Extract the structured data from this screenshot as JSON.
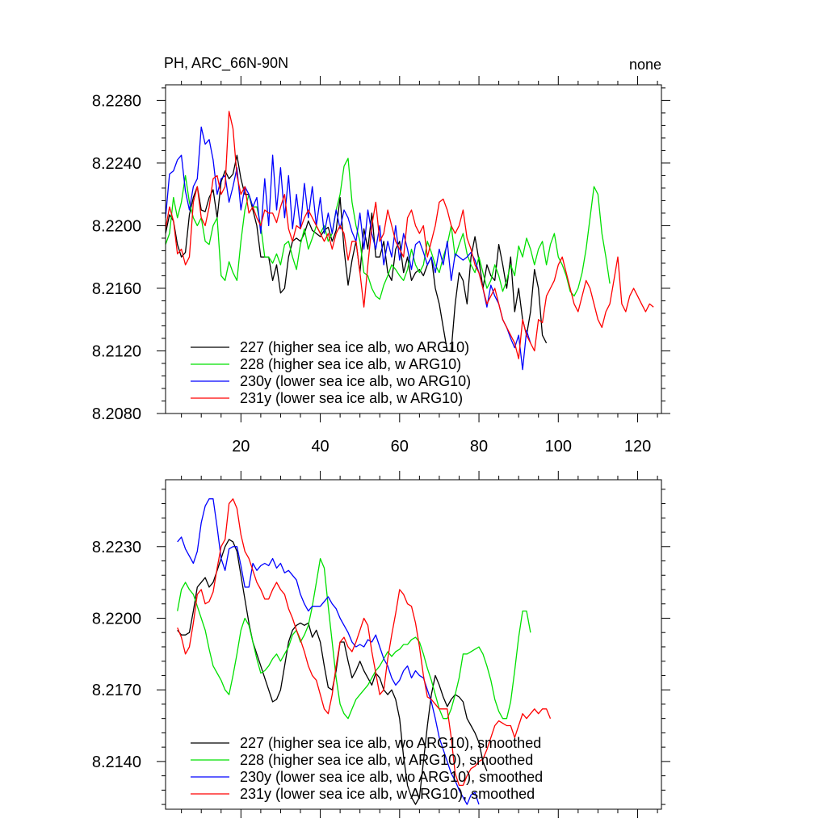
{
  "header": {
    "title_left": "PH, ARC_66N-90N",
    "title_right": "none"
  },
  "chart_data": [
    {
      "type": "line",
      "panel": "top",
      "title": "PH, ARC_66N-90N",
      "right_title": "none",
      "xlabel": "",
      "ylabel": "",
      "xlim": [
        1,
        126
      ],
      "ylim": [
        8.208,
        8.229
      ],
      "x_ticks": [
        20,
        40,
        60,
        80,
        100,
        120
      ],
      "y_ticks": [
        8.208,
        8.212,
        8.216,
        8.22,
        8.224,
        8.228
      ],
      "y_tick_labels": [
        "8.2080",
        "8.2120",
        "8.2160",
        "8.2200",
        "8.2240",
        "8.2280"
      ],
      "grid": false,
      "legend_position": "bottom-left",
      "series": [
        {
          "name": "227 (higher sea ice alb, wo ARG10)",
          "color": "#000000",
          "x_start": 1,
          "values": [
            8.2195,
            8.2207,
            8.2203,
            8.2188,
            8.218,
            8.2183,
            8.2207,
            8.2218,
            8.2225,
            8.221,
            8.2209,
            8.2218,
            8.2223,
            8.2205,
            8.2228,
            8.2235,
            8.223,
            8.2233,
            8.2245,
            8.223,
            8.222,
            8.222,
            8.221,
            8.22,
            8.218,
            8.218,
            8.218,
            8.2165,
            8.2175,
            8.2157,
            8.216,
            8.218,
            8.219,
            8.2192,
            8.219,
            8.2195,
            8.2203,
            8.2197,
            8.2195,
            8.2193,
            8.2197,
            8.2199,
            8.219,
            8.2197,
            8.2218,
            8.2185,
            8.2162,
            8.2178,
            8.219,
            8.217,
            8.2198,
            8.2185,
            8.2208,
            8.218,
            8.218,
            8.219,
            8.217,
            8.2165,
            8.2185,
            8.219,
            8.217,
            8.218,
            8.2165,
            8.217,
            8.2172,
            8.2168,
            8.2175,
            8.218,
            8.216,
            8.215,
            8.2135,
            8.212,
            8.212,
            8.215,
            8.217,
            8.2165,
            8.215,
            8.218,
            8.2193,
            8.2178,
            8.216,
            8.2175,
            8.2168,
            8.2165,
            8.2188,
            8.2175,
            8.216,
            8.218,
            8.2145,
            8.216,
            8.214,
            8.213,
            8.2145,
            8.2172,
            8.216,
            8.213,
            8.2125
          ]
        },
        {
          "name": "228 (higher sea ice alb, w ARG10)",
          "color": "#00e000",
          "x_start": 1,
          "values": [
            8.2188,
            8.2195,
            8.2218,
            8.2205,
            8.2215,
            8.2232,
            8.2215,
            8.2205,
            8.22,
            8.2205,
            8.219,
            8.2188,
            8.22,
            8.2205,
            8.2168,
            8.2165,
            8.2177,
            8.217,
            8.2165,
            8.219,
            8.221,
            8.222,
            8.2212,
            8.2212,
            8.22,
            8.218,
            8.218,
            8.2176,
            8.2182,
            8.2175,
            8.2188,
            8.219,
            8.218,
            8.2172,
            8.2188,
            8.2198,
            8.2185,
            8.2192,
            8.22,
            8.2195,
            8.22,
            8.219,
            8.2195,
            8.221,
            8.222,
            8.2238,
            8.2243,
            8.2215,
            8.22,
            8.219,
            8.217,
            8.2168,
            8.216,
            8.2155,
            8.2153,
            8.2162,
            8.2168,
            8.2175,
            8.2172,
            8.2168,
            8.2165,
            8.2172,
            8.2185,
            8.2175,
            8.217,
            8.2175,
            8.219,
            8.2183,
            8.2175,
            8.217,
            8.218,
            8.2188,
            8.22,
            8.218,
            8.2188,
            8.2195,
            8.2182,
            8.2175,
            8.217,
            8.218,
            8.217,
            8.216,
            8.2165,
            8.2175,
            8.2168,
            8.2158,
            8.2165,
            8.2175,
            8.2168,
            8.2187,
            8.218,
            8.2192,
            8.2185,
            8.2175,
            8.2185,
            8.219,
            8.2175,
            8.2188,
            8.2195,
            8.218,
            8.2175,
            8.2168,
            8.2158,
            8.2155,
            8.216,
            8.217,
            8.2185,
            8.2205,
            8.2225,
            8.222,
            8.2195,
            8.218,
            8.2163
          ]
        },
        {
          "name": "230y (lower sea ice alb, wo ARG10)",
          "color": "#0000ff",
          "x_start": 1,
          "values": [
            8.2205,
            8.2233,
            8.2235,
            8.2242,
            8.2245,
            8.2222,
            8.221,
            8.2225,
            8.223,
            8.2263,
            8.2252,
            8.2255,
            8.2242,
            8.222,
            8.223,
            8.2232,
            8.2215,
            8.2225,
            8.2237,
            8.221,
            8.2225,
            8.222,
            8.2212,
            8.2218,
            8.2195,
            8.223,
            8.22,
            8.2245,
            8.221,
            8.2237,
            8.2205,
            8.2232,
            8.2198,
            8.222,
            8.2198,
            8.2227,
            8.2205,
            8.2225,
            8.22,
            8.2218,
            8.2195,
            8.2208,
            8.2195,
            8.221,
            8.2198,
            8.221,
            8.2205,
            8.2196,
            8.219,
            8.2208,
            8.2185,
            8.221,
            8.2195,
            8.2185,
            8.22,
            8.2175,
            8.219,
            8.218,
            8.22,
            8.2178,
            8.2195,
            8.2185,
            8.2172,
            8.2188,
            8.219,
            8.2183,
            8.2175,
            8.218,
            8.217,
            8.2185,
            8.2175,
            8.219,
            8.2165,
            8.2182,
            8.218,
            8.2178,
            8.218,
            8.2183,
            8.2178,
            8.217,
            8.216,
            8.2148,
            8.2162,
            8.2155,
            8.215,
            8.214,
            8.2135,
            8.2128,
            8.2122,
            8.213,
            8.2108,
            8.2133,
            8.2125
          ]
        },
        {
          "name": "231y (lower sea ice alb, w ARG10)",
          "color": "#ff0000",
          "x_start": 1,
          "values": [
            8.2198,
            8.2212,
            8.2203,
            8.2182,
            8.2185,
            8.2175,
            8.218,
            8.2215,
            8.2225,
            8.2205,
            8.22,
            8.2212,
            8.223,
            8.2232,
            8.222,
            8.2225,
            8.2273,
            8.2262,
            8.2232,
            8.222,
            8.2225,
            8.2208,
            8.2212,
            8.2205,
            8.22,
            8.221,
            8.2208,
            8.2208,
            8.2202,
            8.2212,
            8.222,
            8.2198,
            8.219,
            8.22,
            8.2198,
            8.2205,
            8.221,
            8.2205,
            8.22,
            8.2195,
            8.219,
            8.2195,
            8.2185,
            8.2195,
            8.22,
            8.2195,
            8.2178,
            8.219,
            8.219,
            8.217,
            8.2148,
            8.2175,
            8.22,
            8.2215,
            8.219,
            8.2195,
            8.221,
            8.22,
            8.219,
            8.2185,
            8.218,
            8.2205,
            8.221,
            8.22,
            8.2195,
            8.22,
            8.218,
            8.219,
            8.22,
            8.2215,
            8.2217,
            8.221,
            8.22,
            8.2195,
            8.22,
            8.221,
            8.2192,
            8.2185,
            8.2175,
            8.217,
            8.216,
            8.215,
            8.2155,
            8.216,
            8.215,
            8.214,
            8.2135,
            8.213,
            8.2125,
            8.2115,
            8.214,
            8.213,
            8.2125,
            8.212,
            8.214,
            8.2138,
            8.2155,
            8.216,
            8.2165,
            8.2175,
            8.218,
            8.217,
            8.216,
            8.215,
            8.2145,
            8.2155,
            8.2165,
            8.216,
            8.215,
            8.214,
            8.2135,
            8.2145,
            8.215,
            8.2165,
            8.218,
            8.215,
            8.2145,
            8.2155,
            8.216,
            8.2155,
            8.215,
            8.2145,
            8.215,
            8.2148
          ]
        }
      ]
    },
    {
      "type": "line",
      "panel": "bottom",
      "title": "",
      "xlabel": "",
      "ylabel": "",
      "xlim": [
        1,
        126
      ],
      "ylim": [
        8.212,
        8.2258
      ],
      "x_ticks": [
        20,
        40,
        60,
        80,
        100,
        120
      ],
      "y_ticks": [
        8.214,
        8.217,
        8.22,
        8.223
      ],
      "y_tick_labels": [
        "8.2140",
        "8.2170",
        "8.2200",
        "8.2230"
      ],
      "grid": false,
      "legend_position": "bottom-left",
      "series": [
        {
          "name": "227 (higher sea ice alb, wo ARG10), smoothed",
          "color": "#000000",
          "x_start": 4,
          "values": [
            8.2195,
            8.2193,
            8.2193,
            8.2194,
            8.2203,
            8.2213,
            8.2215,
            8.2217,
            8.2213,
            8.2215,
            8.222,
            8.2225,
            8.223,
            8.2233,
            8.2232,
            8.2228,
            8.2218,
            8.2208,
            8.2198,
            8.219,
            8.2185,
            8.218,
            8.2175,
            8.217,
            8.2165,
            8.2166,
            8.217,
            8.218,
            8.219,
            8.2195,
            8.2197,
            8.2198,
            8.2197,
            8.2198,
            8.2192,
            8.2195,
            8.219,
            8.218,
            8.2171,
            8.217,
            8.2178,
            8.219,
            8.219,
            8.2182,
            8.2175,
            8.2178,
            8.2182,
            8.2178,
            8.2175,
            8.2172,
            8.2177,
            8.2175,
            8.217,
            8.2168,
            8.217,
            8.2166,
            8.2158,
            8.2142,
            8.213,
            8.2125,
            8.2122,
            8.2125,
            8.214,
            8.2155,
            8.2168,
            8.2176,
            8.2172,
            8.2167,
            8.2163,
            8.2166,
            8.2168,
            8.2167,
            8.2165,
            8.2158,
            8.2155,
            8.2152,
            8.2148,
            8.214,
            8.2136
          ]
        },
        {
          "name": "228 (higher sea ice alb, w ARG10), smoothed",
          "color": "#00e000",
          "x_start": 4,
          "values": [
            8.2203,
            8.2212,
            8.2215,
            8.2212,
            8.221,
            8.2205,
            8.22,
            8.2195,
            8.2187,
            8.218,
            8.2177,
            8.2174,
            8.217,
            8.2168,
            8.2176,
            8.2185,
            8.2195,
            8.22,
            8.2197,
            8.219,
            8.2183,
            8.2177,
            8.2178,
            8.218,
            8.2183,
            8.2185,
            8.2182,
            8.2185,
            8.2188,
            8.2193,
            8.2195,
            8.219,
            8.2193,
            8.2197,
            8.2205,
            8.2215,
            8.2225,
            8.2221,
            8.2205,
            8.219,
            8.2175,
            8.2164,
            8.216,
            8.2158,
            8.2162,
            8.2166,
            8.2168,
            8.217,
            8.2172,
            8.2175,
            8.2178,
            8.218,
            8.2183,
            8.2186,
            8.2184,
            8.2186,
            8.2187,
            8.2189,
            8.2189,
            8.2191,
            8.2192,
            8.219,
            8.2185,
            8.2179,
            8.2174,
            8.2168,
            8.2162,
            8.2158,
            8.2158,
            8.2162,
            8.2168,
            8.2175,
            8.2185,
            8.2185,
            8.2186,
            8.2187,
            8.2188,
            8.2185,
            8.218,
            8.2174,
            8.2166,
            8.2161,
            8.2158,
            8.2158,
            8.2165,
            8.2178,
            8.2192,
            8.2203,
            8.2203,
            8.2194
          ]
        },
        {
          "name": "230y (lower sea ice alb, wo ARG10), smoothed",
          "color": "#0000ff",
          "x_start": 4,
          "values": [
            8.2232,
            8.2234,
            8.2229,
            8.2226,
            8.2223,
            8.2228,
            8.224,
            8.2247,
            8.225,
            8.225,
            8.2238,
            8.2225,
            8.222,
            8.2229,
            8.223,
            8.223,
            8.2222,
            8.2213,
            8.2213,
            8.2223,
            8.222,
            8.2222,
            8.2223,
            8.2222,
            8.2225,
            8.2221,
            8.2223,
            8.2219,
            8.222,
            8.2218,
            8.2216,
            8.221,
            8.2206,
            8.2203,
            8.2205,
            8.2205,
            8.2205,
            8.2207,
            8.2209,
            8.2206,
            8.2204,
            8.22,
            8.2197,
            8.2194,
            8.219,
            8.2188,
            8.2189,
            8.2188,
            8.2191,
            8.219,
            8.2193,
            8.2188,
            8.2183,
            8.218,
            8.2175,
            8.2172,
            8.2174,
            8.2178,
            8.218,
            8.2175,
            8.2178,
            8.2176,
            8.2175,
            8.217,
            8.2165,
            8.2158,
            8.215,
            8.2145,
            8.214,
            8.2135,
            8.2132,
            8.2128,
            8.2125,
            8.2122,
            8.2126,
            8.2127,
            8.2122
          ]
        },
        {
          "name": "231y (lower sea ice alb, w ARG10), smoothed",
          "color": "#ff0000",
          "x_start": 4,
          "values": [
            8.2196,
            8.2192,
            8.2185,
            8.2188,
            8.2198,
            8.221,
            8.2212,
            8.2206,
            8.2207,
            8.2211,
            8.2221,
            8.223,
            8.2233,
            8.2248,
            8.225,
            8.2246,
            8.2235,
            8.2228,
            8.2225,
            8.222,
            8.2215,
            8.2212,
            8.2208,
            8.2208,
            8.2212,
            8.2215,
            8.2212,
            8.221,
            8.2204,
            8.22,
            8.2195,
            8.2191,
            8.2186,
            8.218,
            8.2176,
            8.2174,
            8.2168,
            8.2162,
            8.216,
            8.2168,
            8.218,
            8.219,
            8.2192,
            8.2188,
            8.2186,
            8.219,
            8.2195,
            8.22,
            8.2197,
            8.2186,
            8.2177,
            8.2168,
            8.217,
            8.2183,
            8.2193,
            8.2202,
            8.2212,
            8.221,
            8.2206,
            8.2205,
            8.2198,
            8.2188,
            8.2176,
            8.2167,
            8.2166,
            8.2164,
            8.2162,
            8.2162,
            8.2162,
            8.215,
            8.2135,
            8.213,
            8.213,
            8.2134,
            8.2137,
            8.2138,
            8.214,
            8.2141,
            8.2145,
            8.215,
            8.2155,
            8.2157,
            8.2156,
            8.2155,
            8.2155,
            8.215,
            8.2155,
            8.216,
            8.2158,
            8.216,
            8.2162,
            8.216,
            8.2162,
            8.2162,
            8.2158
          ]
        }
      ]
    }
  ]
}
